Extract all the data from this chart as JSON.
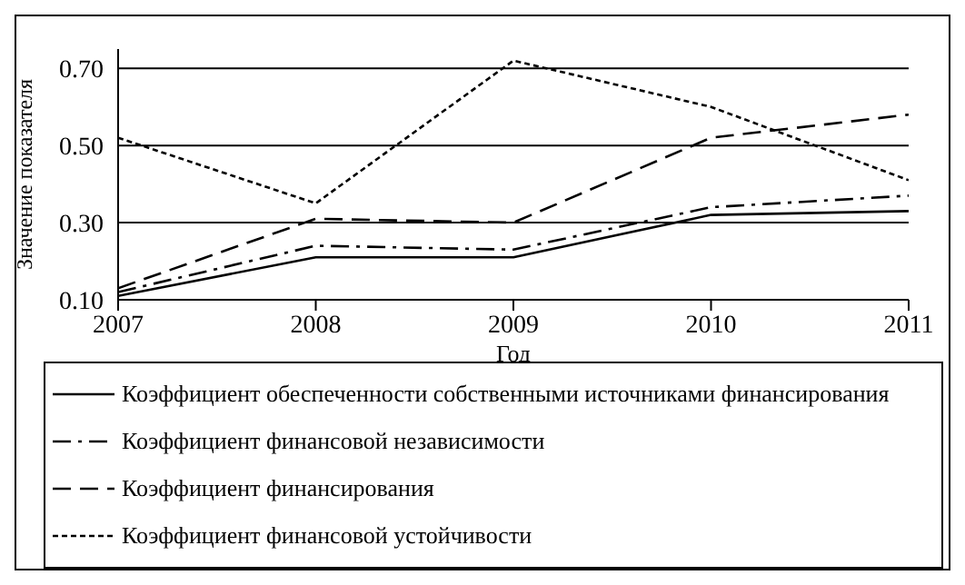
{
  "chart_data": {
    "type": "line",
    "xlabel": "Год",
    "ylabel": "Значение показателя",
    "x": [
      2007,
      2008,
      2009,
      2010,
      2011
    ],
    "xlim": [
      2007,
      2011
    ],
    "xticks": [
      2007,
      2008,
      2009,
      2010,
      2011
    ],
    "ylim": [
      0.1,
      0.75
    ],
    "yticks": [
      {
        "value": 0.1,
        "label": "0.10"
      },
      {
        "value": 0.3,
        "label": "0.30"
      },
      {
        "value": 0.5,
        "label": "0.50"
      },
      {
        "value": 0.7,
        "label": "0.70"
      }
    ],
    "grid": "y",
    "legend": "bottom",
    "marker": "none",
    "series": [
      {
        "name": "Коэффициент обеспеченности собственными источниками финансирования",
        "color": "#000000",
        "line_style": "solid",
        "values": [
          0.11,
          0.21,
          0.21,
          0.32,
          0.33
        ]
      },
      {
        "name": "Коэффициент финансовой независимости",
        "color": "#000000",
        "line_style": "dashdot",
        "values": [
          0.12,
          0.24,
          0.23,
          0.34,
          0.37
        ]
      },
      {
        "name": "Коэффициент финансирования",
        "color": "#000000",
        "line_style": "dashed",
        "values": [
          0.13,
          0.31,
          0.3,
          0.52,
          0.58
        ]
      },
      {
        "name": "Коэффициент финансовой устойчивости",
        "color": "#000000",
        "line_style": "dotted",
        "values": [
          0.52,
          0.35,
          0.72,
          0.6,
          0.41
        ]
      }
    ]
  }
}
